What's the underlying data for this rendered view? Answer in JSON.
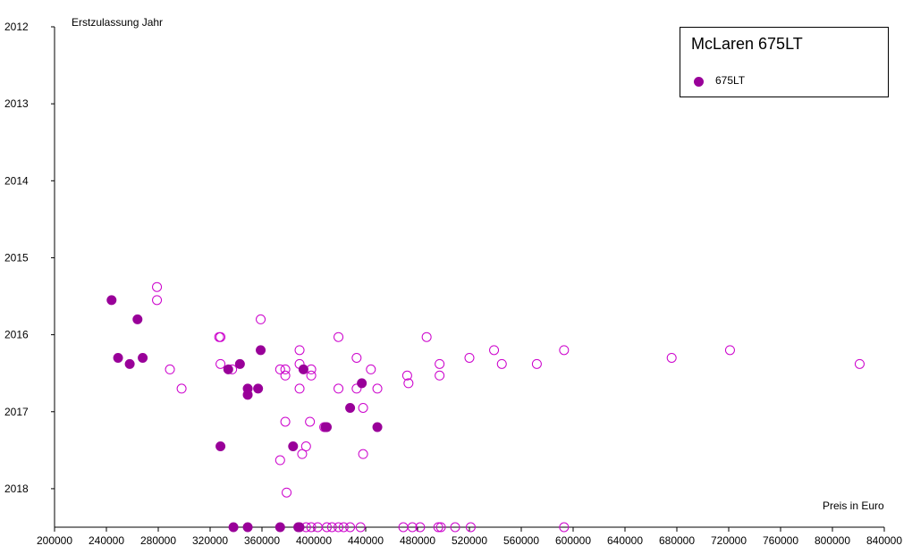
{
  "chart_data": {
    "type": "scatter",
    "title": "McLaren 675LT",
    "xlabel": "Preis in Euro",
    "ylabel": "Erstzulassung Jahr",
    "xlim": [
      200000,
      840000
    ],
    "ylim": [
      2012,
      2018.5
    ],
    "y_inverted": true,
    "x_ticks": [
      200000,
      240000,
      280000,
      320000,
      360000,
      400000,
      440000,
      480000,
      520000,
      560000,
      600000,
      640000,
      680000,
      720000,
      760000,
      800000,
      840000
    ],
    "y_ticks": [
      2012,
      2013,
      2014,
      2015,
      2016,
      2017,
      2018
    ],
    "grid": false,
    "legend": {
      "position": "top-right",
      "entries": [
        "675LT"
      ]
    },
    "colors": {
      "filled": "#990099",
      "hollow": "#cc00cc"
    },
    "series": [
      {
        "name": "675LT",
        "filled": [
          [
            244000,
            2015.55
          ],
          [
            249000,
            2016.3
          ],
          [
            258000,
            2016.38
          ],
          [
            264000,
            2015.8
          ],
          [
            268000,
            2016.3
          ],
          [
            328000,
            2017.45
          ],
          [
            334000,
            2016.45
          ],
          [
            343000,
            2016.38
          ],
          [
            349000,
            2016.7
          ],
          [
            349000,
            2016.78
          ],
          [
            357000,
            2016.7
          ],
          [
            359000,
            2016.2
          ],
          [
            384000,
            2017.45
          ],
          [
            392000,
            2016.45
          ],
          [
            409000,
            2017.2
          ],
          [
            410000,
            2017.2
          ],
          [
            428000,
            2016.95
          ],
          [
            437000,
            2016.63
          ],
          [
            449000,
            2017.2
          ],
          [
            338000,
            2018.5
          ],
          [
            349000,
            2018.5
          ],
          [
            374000,
            2018.5
          ],
          [
            388000,
            2018.5
          ],
          [
            389000,
            2018.5
          ]
        ],
        "hollow": [
          [
            279000,
            2015.38
          ],
          [
            279000,
            2015.55
          ],
          [
            289000,
            2016.45
          ],
          [
            298000,
            2016.7
          ],
          [
            327000,
            2016.03
          ],
          [
            328000,
            2016.03
          ],
          [
            328000,
            2016.38
          ],
          [
            337000,
            2016.45
          ],
          [
            359000,
            2015.8
          ],
          [
            374000,
            2016.45
          ],
          [
            374000,
            2017.63
          ],
          [
            378000,
            2016.45
          ],
          [
            378000,
            2016.53
          ],
          [
            378000,
            2017.13
          ],
          [
            379000,
            2018.05
          ],
          [
            389000,
            2016.2
          ],
          [
            389000,
            2016.38
          ],
          [
            389000,
            2016.7
          ],
          [
            391000,
            2017.55
          ],
          [
            394000,
            2017.45
          ],
          [
            397000,
            2017.13
          ],
          [
            398000,
            2016.45
          ],
          [
            398000,
            2016.53
          ],
          [
            408000,
            2017.2
          ],
          [
            419000,
            2016.03
          ],
          [
            419000,
            2016.7
          ],
          [
            433000,
            2016.3
          ],
          [
            433000,
            2016.7
          ],
          [
            438000,
            2016.95
          ],
          [
            438000,
            2017.55
          ],
          [
            444000,
            2016.45
          ],
          [
            449000,
            2016.7
          ],
          [
            472000,
            2016.53
          ],
          [
            473000,
            2016.63
          ],
          [
            487000,
            2016.03
          ],
          [
            497000,
            2016.38
          ],
          [
            497000,
            2016.53
          ],
          [
            520000,
            2016.3
          ],
          [
            539000,
            2016.2
          ],
          [
            545000,
            2016.38
          ],
          [
            572000,
            2016.38
          ],
          [
            593000,
            2016.2
          ],
          [
            676000,
            2016.3
          ],
          [
            721000,
            2016.2
          ],
          [
            821000,
            2016.38
          ],
          [
            394000,
            2018.5
          ],
          [
            398000,
            2018.5
          ],
          [
            403000,
            2018.5
          ],
          [
            410000,
            2018.5
          ],
          [
            414000,
            2018.5
          ],
          [
            419000,
            2018.5
          ],
          [
            423000,
            2018.5
          ],
          [
            428000,
            2018.5
          ],
          [
            436000,
            2018.5
          ],
          [
            469000,
            2018.5
          ],
          [
            476000,
            2018.5
          ],
          [
            482000,
            2018.5
          ],
          [
            496000,
            2018.5
          ],
          [
            498000,
            2018.5
          ],
          [
            509000,
            2018.5
          ],
          [
            521000,
            2018.5
          ],
          [
            593000,
            2018.5
          ]
        ]
      }
    ]
  }
}
